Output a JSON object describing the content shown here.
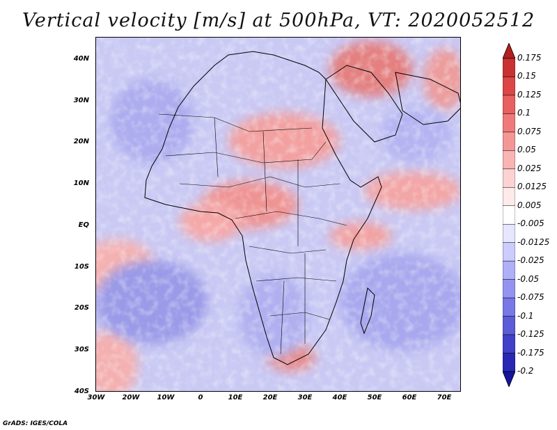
{
  "title": "Vertical velocity [m/s] at 500hPa, VT: 2020052512",
  "credit": "GrADS: IGES/COLA",
  "lat_labels": [
    "40N",
    "30N",
    "20N",
    "10N",
    "EQ",
    "10S",
    "20S",
    "30S",
    "40S"
  ],
  "lon_labels": [
    "30W",
    "20W",
    "10W",
    "0",
    "10E",
    "20E",
    "30E",
    "40E",
    "50E",
    "60E",
    "70E"
  ],
  "colorbar": {
    "labels": [
      "0.175",
      "0.15",
      "0.125",
      "0.1",
      "0.075",
      "0.05",
      "0.025",
      "0.0125",
      "0.005",
      "-0.005",
      "-0.0125",
      "-0.025",
      "-0.05",
      "-0.075",
      "-0.1",
      "-0.125",
      "-0.175",
      "-0.2"
    ],
    "colors": [
      "#b41e1e",
      "#c83232",
      "#dc4646",
      "#e86060",
      "#f07a7a",
      "#f59696",
      "#f9b4b4",
      "#fcd2d2",
      "#ffeaea",
      "#ffffff",
      "#e6e6ff",
      "#ccccff",
      "#b0b0f8",
      "#9494f0",
      "#7878e6",
      "#5c5cd8",
      "#4040c8",
      "#2828b4",
      "#1414a0"
    ]
  },
  "map": {
    "background_color": "#c9c9f4",
    "land_outline_color": "#000000"
  }
}
